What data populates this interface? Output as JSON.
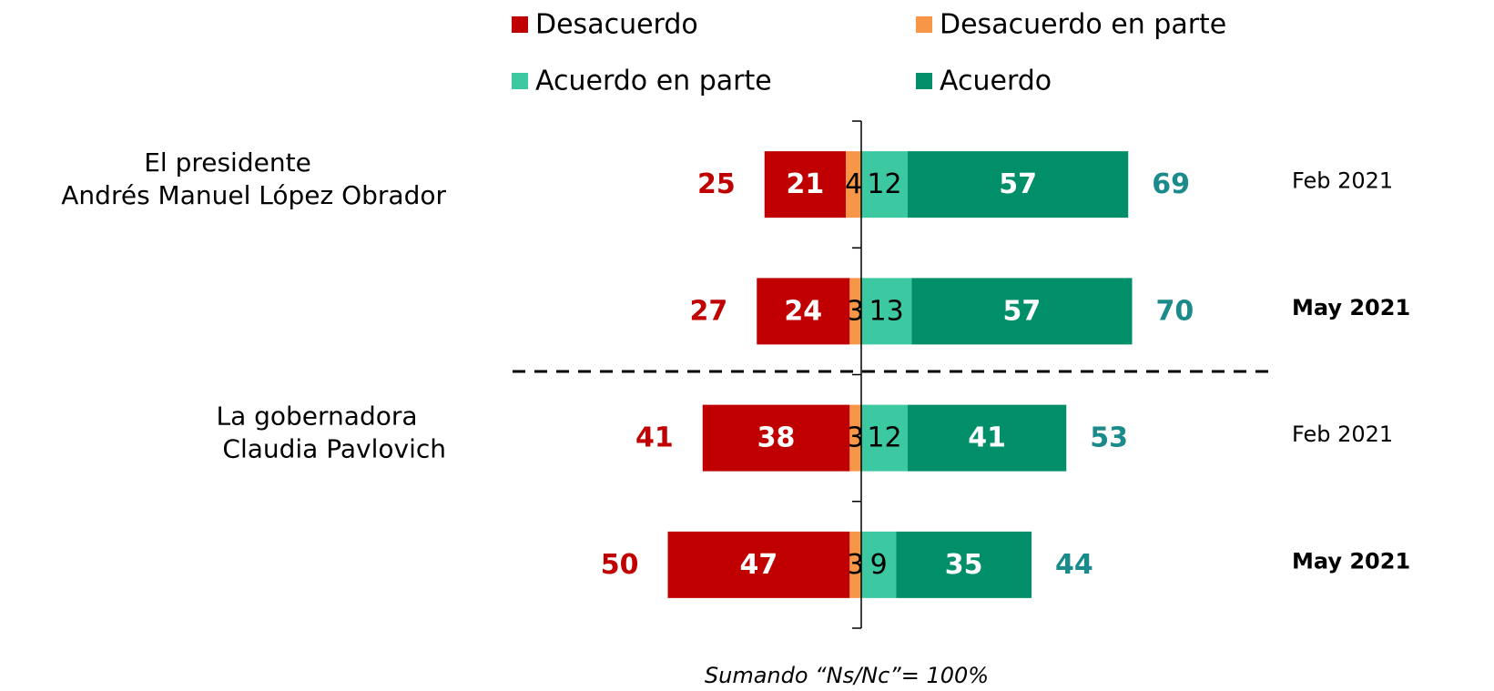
{
  "chart_data": {
    "type": "diverging_bar",
    "groups": [
      [
        "El presidente",
        "Andrés Manuel López Obrador"
      ],
      [
        "La gobernadora",
        "Claudia Pavlovich"
      ]
    ],
    "categories": [
      "Feb 2021",
      "May 2021",
      "Feb 2021",
      "May 2021"
    ],
    "highlight": [
      false,
      true,
      false,
      true
    ],
    "series": [
      {
        "name": "Desacuerdo",
        "color": "#c00000",
        "side": "left",
        "label_color": "#ffffff",
        "values": [
          21,
          24,
          38,
          47
        ]
      },
      {
        "name": "Desacuerdo en parte",
        "color": "#f79646",
        "side": "left",
        "label_color": "#000000",
        "values": [
          4,
          3,
          3,
          3
        ]
      },
      {
        "name": "Acuerdo en parte",
        "color": "#3cc8a0",
        "side": "right",
        "label_color": "#000000",
        "values": [
          12,
          13,
          12,
          9
        ]
      },
      {
        "name": "Acuerdo",
        "color": "#008f68",
        "side": "right",
        "label_color": "#ffffff",
        "values": [
          57,
          57,
          41,
          35
        ]
      }
    ],
    "totals_left": {
      "color": "#c00000",
      "values": [
        25,
        27,
        41,
        50
      ]
    },
    "totals_right": {
      "color": "#1a8a8a",
      "values": [
        69,
        70,
        53,
        44
      ]
    },
    "footnote": "Sumando “Ns/Nc”= 100%"
  }
}
